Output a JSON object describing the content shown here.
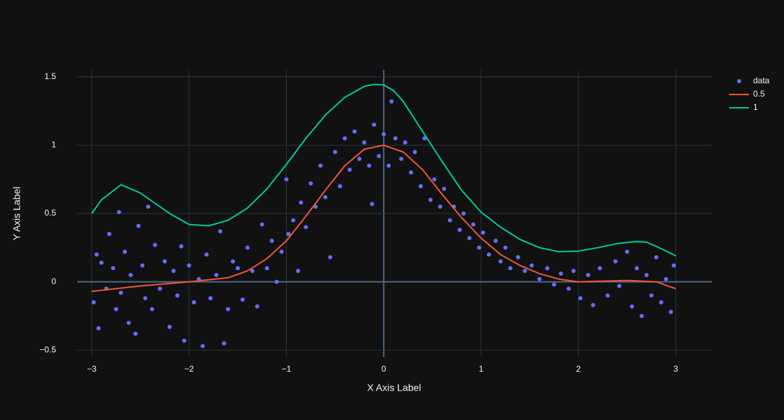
{
  "chart_data": {
    "type": "scatter",
    "xlabel": "X Axis Label",
    "ylabel": "Y Axis Label",
    "xlim": [
      -3.15,
      3.37
    ],
    "ylim": [
      -0.55,
      1.55
    ],
    "xticks": [
      {
        "value": -3,
        "label": "−3"
      },
      {
        "value": -2,
        "label": "−2"
      },
      {
        "value": -1,
        "label": "−1"
      },
      0,
      1,
      2,
      3
    ],
    "yticks": [
      {
        "value": -0.5,
        "label": "−0.5"
      },
      0,
      0.5,
      1,
      1.5
    ],
    "grid": true,
    "legend": "top-right",
    "series": [
      {
        "name": "data",
        "mode": "markers",
        "color": "#636efa",
        "x": [
          -2.98,
          -2.95,
          -2.93,
          -2.9,
          -2.85,
          -2.82,
          -2.78,
          -2.75,
          -2.72,
          -2.7,
          -2.66,
          -2.62,
          -2.6,
          -2.55,
          -2.52,
          -2.48,
          -2.45,
          -2.42,
          -2.38,
          -2.35,
          -2.3,
          -2.25,
          -2.2,
          -2.16,
          -2.12,
          -2.08,
          -2.05,
          -2.0,
          -1.95,
          -1.9,
          -1.86,
          -1.82,
          -1.78,
          -1.72,
          -1.68,
          -1.64,
          -1.6,
          -1.55,
          -1.5,
          -1.45,
          -1.4,
          -1.35,
          -1.3,
          -1.25,
          -1.2,
          -1.15,
          -1.1,
          -1.05,
          -1.0,
          -0.98,
          -0.93,
          -0.88,
          -0.85,
          -0.8,
          -0.75,
          -0.7,
          -0.65,
          -0.6,
          -0.55,
          -0.5,
          -0.45,
          -0.4,
          -0.35,
          -0.3,
          -0.25,
          -0.2,
          -0.15,
          -0.12,
          -0.1,
          -0.05,
          0.0,
          0.05,
          0.08,
          0.12,
          0.18,
          0.22,
          0.28,
          0.32,
          0.38,
          0.42,
          0.48,
          0.52,
          0.58,
          0.62,
          0.68,
          0.72,
          0.78,
          0.82,
          0.88,
          0.92,
          0.98,
          1.02,
          1.08,
          1.15,
          1.2,
          1.25,
          1.3,
          1.38,
          1.45,
          1.52,
          1.6,
          1.68,
          1.75,
          1.82,
          1.9,
          1.95,
          2.02,
          2.1,
          2.15,
          2.22,
          2.3,
          2.38,
          2.42,
          2.5,
          2.55,
          2.6,
          2.65,
          2.7,
          2.75,
          2.8,
          2.85,
          2.9,
          2.95,
          2.98
        ],
        "values": [
          -0.15,
          0.2,
          -0.34,
          0.14,
          -0.05,
          0.35,
          0.1,
          -0.2,
          0.51,
          -0.08,
          0.22,
          -0.3,
          0.05,
          -0.38,
          0.41,
          0.12,
          -0.12,
          0.55,
          -0.2,
          0.27,
          -0.05,
          0.15,
          -0.33,
          0.08,
          -0.1,
          0.26,
          -0.43,
          0.12,
          -0.15,
          0.02,
          -0.47,
          0.2,
          -0.12,
          0.05,
          0.37,
          -0.45,
          -0.2,
          0.15,
          0.1,
          -0.13,
          0.25,
          0.08,
          -0.18,
          0.42,
          0.1,
          0.3,
          0.0,
          0.22,
          0.75,
          0.35,
          0.45,
          0.08,
          0.58,
          0.4,
          0.72,
          0.55,
          0.85,
          0.62,
          0.18,
          0.95,
          0.7,
          1.05,
          0.82,
          1.1,
          0.9,
          1.02,
          0.85,
          0.57,
          1.15,
          0.92,
          1.08,
          0.85,
          1.32,
          1.05,
          0.9,
          1.02,
          0.8,
          0.95,
          0.7,
          1.05,
          0.6,
          0.75,
          0.55,
          0.68,
          0.45,
          0.55,
          0.38,
          0.5,
          0.32,
          0.42,
          0.25,
          0.36,
          0.2,
          0.3,
          0.15,
          0.25,
          0.1,
          0.18,
          0.08,
          0.12,
          0.02,
          0.1,
          -0.02,
          0.06,
          -0.05,
          0.08,
          -0.12,
          0.05,
          -0.17,
          0.1,
          -0.1,
          0.15,
          -0.03,
          0.22,
          -0.18,
          0.1,
          -0.25,
          0.05,
          -0.1,
          0.18,
          -0.15,
          0.02,
          -0.22,
          0.12
        ]
      },
      {
        "name": "0.5",
        "mode": "lines",
        "color": "#ef553b",
        "x": [
          -3,
          -2.5,
          -2,
          -1.6,
          -1.4,
          -1.2,
          -1,
          -0.8,
          -0.6,
          -0.4,
          -0.2,
          0,
          0.2,
          0.4,
          0.6,
          0.8,
          1,
          1.2,
          1.4,
          1.6,
          1.8,
          2,
          2.5,
          2.8,
          3
        ],
        "values": [
          -0.07,
          -0.03,
          0.0,
          0.03,
          0.08,
          0.17,
          0.3,
          0.48,
          0.67,
          0.85,
          0.97,
          1.0,
          0.95,
          0.82,
          0.64,
          0.47,
          0.32,
          0.2,
          0.12,
          0.06,
          0.02,
          0.0,
          0.01,
          0.0,
          -0.05
        ]
      },
      {
        "name": "1",
        "mode": "lines",
        "color": "#00cc96",
        "x": [
          -3,
          -2.9,
          -2.7,
          -2.5,
          -2.2,
          -2,
          -1.8,
          -1.6,
          -1.4,
          -1.2,
          -1,
          -0.8,
          -0.6,
          -0.4,
          -0.2,
          -0.1,
          0,
          0.1,
          0.2,
          0.4,
          0.6,
          0.8,
          1,
          1.2,
          1.4,
          1.6,
          1.8,
          2,
          2.2,
          2.4,
          2.6,
          2.7,
          2.8,
          3
        ],
        "values": [
          0.5,
          0.6,
          0.71,
          0.65,
          0.5,
          0.42,
          0.41,
          0.45,
          0.54,
          0.68,
          0.86,
          1.05,
          1.22,
          1.35,
          1.43,
          1.445,
          1.44,
          1.4,
          1.32,
          1.1,
          0.88,
          0.67,
          0.51,
          0.4,
          0.31,
          0.25,
          0.22,
          0.225,
          0.25,
          0.28,
          0.295,
          0.29,
          0.26,
          0.19
        ]
      }
    ]
  }
}
